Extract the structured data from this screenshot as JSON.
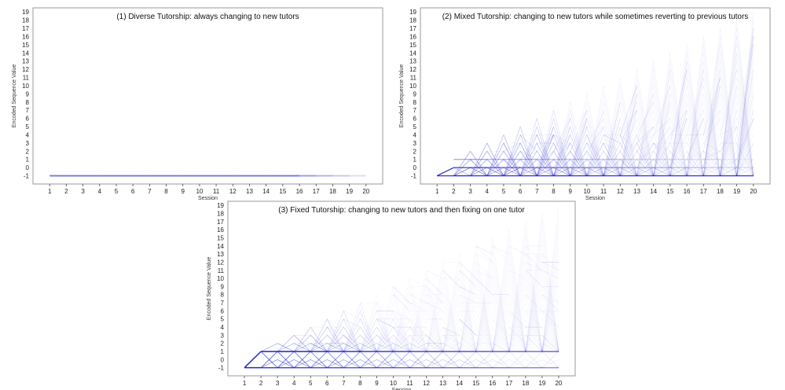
{
  "chart_data": [
    {
      "type": "line",
      "title": "(1) Diverse Tutorship: always changing to new tutors",
      "xlabel": "Session",
      "ylabel": "Encoded Sequence Value",
      "x": [
        1,
        2,
        3,
        4,
        5,
        6,
        7,
        8,
        9,
        10,
        11,
        12,
        13,
        14,
        15,
        16,
        17,
        18,
        19,
        20
      ],
      "xlim": [
        0,
        21
      ],
      "ylim": [
        -2,
        19.5
      ],
      "yticks": [
        -1,
        0,
        1,
        2,
        3,
        4,
        5,
        6,
        7,
        8,
        9,
        10,
        11,
        12,
        13,
        14,
        15,
        16,
        17,
        18,
        19
      ],
      "pattern": "diverse",
      "color": "#1a1acc",
      "series_summary": "all sessions encoded as -1 (new tutor)"
    },
    {
      "type": "line",
      "title": "(2) Mixed Tutorship: changing to new tutors while sometimes reverting to previous tutors",
      "xlabel": "Session",
      "ylabel": "Encoded Sequence Value",
      "x": [
        1,
        2,
        3,
        4,
        5,
        6,
        7,
        8,
        9,
        10,
        11,
        12,
        13,
        14,
        15,
        16,
        17,
        18,
        19,
        20
      ],
      "xlim": [
        0,
        21
      ],
      "ylim": [
        -2,
        19.5
      ],
      "yticks": [
        -1,
        0,
        1,
        2,
        3,
        4,
        5,
        6,
        7,
        8,
        9,
        10,
        11,
        12,
        13,
        14,
        15,
        16,
        17,
        18,
        19
      ],
      "pattern": "mixed",
      "color": "#1a1acc",
      "series_summary": "values -1 (new tutor) or index of a previous tutor, up to session-1"
    },
    {
      "type": "line",
      "title": "(3) Fixed Tutorship: changing to new tutors and then fixing on one tutor",
      "xlabel": "Session",
      "ylabel": "Encoded Sequence Value",
      "x": [
        1,
        2,
        3,
        4,
        5,
        6,
        7,
        8,
        9,
        10,
        11,
        12,
        13,
        14,
        15,
        16,
        17,
        18,
        19,
        20
      ],
      "xlim": [
        0,
        21
      ],
      "ylim": [
        -2,
        19.5
      ],
      "yticks": [
        -1,
        0,
        1,
        2,
        3,
        4,
        5,
        6,
        7,
        8,
        9,
        10,
        11,
        12,
        13,
        14,
        15,
        16,
        17,
        18,
        19
      ],
      "pattern": "fixed",
      "color": "#1a1acc",
      "series_summary": "new tutors then a fixed tutor; dominant levels -1 and 1"
    }
  ]
}
